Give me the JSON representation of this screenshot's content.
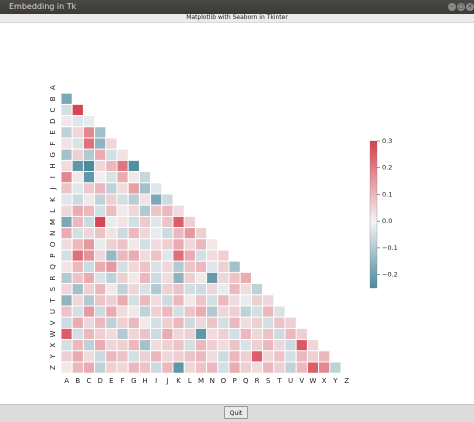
{
  "window": {
    "title": "Embedding in Tk",
    "min_glyph": "–",
    "max_glyph": "□",
    "close_glyph": "×"
  },
  "figure": {
    "title": "Matplotlib with Seaborn in Tkinter"
  },
  "quit_button": {
    "label": "Quit"
  },
  "colors": {
    "positive": "#d6404e",
    "negative": "#4c8a9e",
    "neutral": "#f4f4f4"
  },
  "chart_data": {
    "type": "heatmap",
    "subtype": "lower-triangular correlation matrix (diagonal masked)",
    "categories": [
      "A",
      "B",
      "C",
      "D",
      "E",
      "F",
      "G",
      "H",
      "I",
      "J",
      "K",
      "L",
      "M",
      "N",
      "O",
      "P",
      "Q",
      "R",
      "S",
      "T",
      "U",
      "V",
      "W",
      "X",
      "Y",
      "Z"
    ],
    "colorbar": {
      "ticks": [
        0.3,
        0.2,
        0.1,
        0.0,
        -0.1,
        -0.2
      ],
      "tick_labels": [
        "0.3",
        "0.2",
        "0.1",
        "0.0",
        "−0.1",
        "−0.2"
      ],
      "range": [
        -0.25,
        0.3
      ]
    },
    "values": [
      [],
      [
        -0.18
      ],
      [
        -0.05,
        0.29
      ],
      [
        0.02,
        -0.03,
        -0.02
      ],
      [
        -0.08,
        0.05,
        0.18,
        -0.12
      ],
      [
        0.03,
        -0.04,
        0.22,
        -0.15,
        0.05
      ],
      [
        -0.12,
        0.06,
        -0.1,
        0.12,
        -0.05,
        0.03
      ],
      [
        0.04,
        -0.22,
        -0.26,
        0.05,
        0.1,
        0.21,
        -0.24
      ],
      [
        0.18,
        0.02,
        -0.22,
        0.01,
        -0.04,
        0.12,
        0.02,
        -0.07
      ],
      [
        0.08,
        -0.03,
        0.07,
        0.1,
        -0.08,
        0.04,
        0.14,
        -0.12,
        -0.03
      ],
      [
        -0.03,
        -0.06,
        0.02,
        -0.08,
        0.06,
        -0.05,
        -0.09,
        0.03,
        -0.18,
        -0.06
      ],
      [
        0.05,
        0.12,
        0.1,
        -0.05,
        0.09,
        0.02,
        0.05,
        -0.1,
        0.08,
        0.1,
        0.04
      ],
      [
        -0.18,
        0.1,
        -0.06,
        0.29,
        -0.02,
        0.03,
        -0.05,
        0.07,
        -0.03,
        0.08,
        0.25,
        0.06
      ],
      [
        0.12,
        -0.05,
        0.05,
        0.08,
        0.03,
        -0.06,
        0.1,
        0.05,
        -0.02,
        -0.06,
        0.1,
        0.15,
        0.06
      ],
      [
        0.04,
        0.1,
        0.15,
        -0.02,
        0.06,
        0.08,
        0.02,
        -0.05,
        0.04,
        0.06,
        0.12,
        0.05,
        0.1,
        0.02
      ],
      [
        -0.05,
        0.22,
        0.16,
        0.05,
        -0.14,
        0.1,
        0.12,
        0.04,
        0.08,
        -0.03,
        0.22,
        0.12,
        -0.05,
        0.04,
        0.06
      ],
      [
        0.03,
        0.1,
        -0.06,
        0.12,
        0.15,
        -0.05,
        0.05,
        0.08,
        -0.04,
        0.05,
        -0.1,
        0.08,
        0.1,
        -0.03,
        0.06,
        -0.12
      ],
      [
        -0.1,
        0.08,
        0.12,
        -0.04,
        -0.08,
        0.06,
        0.02,
        0.1,
        -0.06,
        0.04,
        -0.15,
        0.06,
        0.02,
        -0.21,
        0.05,
        0.08,
        0.12
      ],
      [
        0.05,
        -0.12,
        0.06,
        0.1,
        0.02,
        -0.08,
        0.05,
        -0.04,
        -0.1,
        0.06,
        0.08,
        -0.05,
        -0.06,
        0.05,
        -0.02,
        0.1,
        0.04,
        -0.08
      ],
      [
        -0.15,
        0.05,
        -0.1,
        0.08,
        0.06,
        0.12,
        -0.05,
        0.1,
        0.04,
        -0.06,
        0.1,
        0.02,
        0.08,
        -0.05,
        0.1,
        0.04,
        -0.02,
        0.06,
        0.05
      ],
      [
        0.08,
        -0.05,
        0.15,
        -0.06,
        0.12,
        0.04,
        0.02,
        -0.08,
        0.06,
        0.1,
        -0.05,
        0.08,
        0.12,
        -0.1,
        0.05,
        0.06,
        -0.08,
        -0.05,
        0.1,
        -0.04
      ],
      [
        -0.06,
        0.12,
        0.05,
        0.1,
        -0.08,
        0.06,
        0.1,
        0.02,
        -0.05,
        0.06,
        0.1,
        -0.06,
        0.05,
        0.08,
        -0.05,
        0.1,
        0.04,
        0.06,
        -0.05,
        0.08,
        0.06
      ],
      [
        0.25,
        -0.05,
        0.1,
        0.06,
        0.04,
        -0.1,
        0.05,
        0.08,
        -0.06,
        0.12,
        0.05,
        0.06,
        -0.22,
        0.04,
        0.06,
        -0.05,
        0.1,
        0.05,
        0.08,
        -0.06,
        0.1,
        0.06
      ],
      [
        -0.05,
        0.1,
        -0.08,
        0.12,
        0.05,
        0.06,
        0.1,
        -0.12,
        0.04,
        0.06,
        0.08,
        -0.05,
        0.1,
        0.06,
        0.04,
        0.08,
        -0.04,
        0.06,
        0.1,
        0.05,
        -0.06,
        0.26,
        0.05
      ],
      [
        0.06,
        0.12,
        0.04,
        -0.06,
        0.1,
        0.08,
        -0.05,
        0.06,
        0.1,
        0.05,
        0.06,
        0.08,
        0.1,
        0.04,
        -0.06,
        0.1,
        0.06,
        0.25,
        0.05,
        0.08,
        -0.05,
        0.1,
        0.06,
        0.1
      ],
      [
        0.02,
        0.1,
        0.12,
        -0.08,
        0.06,
        0.05,
        0.1,
        0.08,
        -0.06,
        0.1,
        -0.22,
        0.05,
        0.08,
        0.1,
        -0.05,
        0.12,
        0.06,
        0.04,
        0.1,
        0.06,
        -0.08,
        0.1,
        0.25,
        0.18,
        -0.08
      ]
    ]
  }
}
